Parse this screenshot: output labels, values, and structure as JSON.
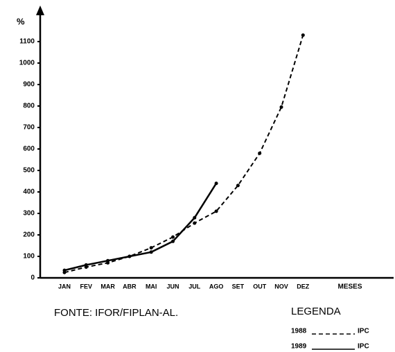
{
  "chart_data": {
    "type": "line",
    "y_label": "%",
    "x_label": "MESES",
    "categories": [
      "JAN",
      "FEV",
      "MAR",
      "ABR",
      "MAI",
      "JUN",
      "JUL",
      "AGO",
      "SET",
      "OUT",
      "NOV",
      "DEZ"
    ],
    "series": [
      {
        "name": "1988",
        "label": "IPC",
        "color": "#000000",
        "style": "dashed",
        "values": [
          25,
          50,
          70,
          100,
          140,
          190,
          255,
          310,
          430,
          580,
          795,
          1130
        ]
      },
      {
        "name": "1989",
        "label": "IPC",
        "color": "#000000",
        "style": "solid",
        "values": [
          35,
          60,
          80,
          100,
          120,
          170,
          280,
          440,
          null,
          null,
          null,
          null
        ]
      }
    ],
    "ylim": [
      0,
      1100
    ],
    "yticks": [
      0,
      100,
      200,
      300,
      400,
      500,
      600,
      700,
      800,
      900,
      1000,
      1100
    ],
    "legend_title": "LEGENDA",
    "source": "FONTE: IFOR/FIPLAN-AL."
  }
}
